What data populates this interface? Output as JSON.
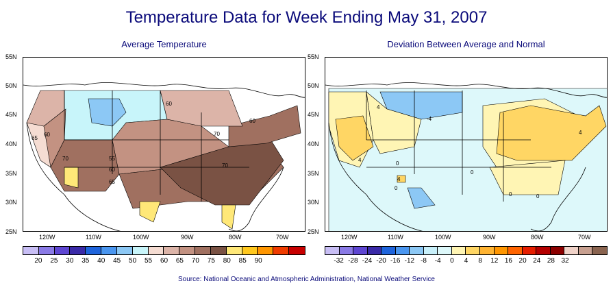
{
  "title": "Temperature Data for Week Ending May 31, 2007",
  "left_map": {
    "subtitle": "Average Temperature",
    "lat_labels": [
      "55N",
      "50N",
      "45N",
      "40N",
      "35N",
      "30N",
      "25N"
    ],
    "lon_labels": [
      "120W",
      "110W",
      "100W",
      "90W",
      "80W",
      "70W"
    ],
    "contour_labels": [
      "60",
      "65",
      "60",
      "70",
      "70",
      "55",
      "60",
      "65",
      "60",
      "70"
    ],
    "legend_colors": [
      "#c8bef5",
      "#8a7ae6",
      "#5e46d2",
      "#3a2aa8",
      "#1e64dc",
      "#4a96f0",
      "#8cc8f5",
      "#c8f5fa",
      "#f5dcd2",
      "#dcb4a8",
      "#c39282",
      "#a07060",
      "#7a5244",
      "#ffe878",
      "#ffc81e",
      "#ff9600",
      "#f03c00",
      "#c80000"
    ],
    "legend_ticks": [
      "20",
      "25",
      "30",
      "35",
      "40",
      "45",
      "50",
      "55",
      "60",
      "65",
      "70",
      "75",
      "80",
      "85",
      "90"
    ]
  },
  "right_map": {
    "subtitle": "Deviation Between Average and Normal",
    "lat_labels": [
      "55N",
      "50N",
      "45N",
      "40N",
      "35N",
      "30N",
      "25N"
    ],
    "lon_labels": [
      "120W",
      "110W",
      "100W",
      "90W",
      "80W",
      "70W"
    ],
    "contour_labels": [
      "4",
      "-4",
      "0",
      "4",
      "0",
      "4",
      "0",
      "0",
      "0",
      "4"
    ],
    "legend_colors": [
      "#c8bef5",
      "#8a7ae6",
      "#5e46d2",
      "#3a2aa8",
      "#1e64dc",
      "#4a96f0",
      "#8cc8f5",
      "#c8f0fa",
      "#ddf8fa",
      "#fff5b4",
      "#ffd664",
      "#ffb432",
      "#ff9600",
      "#ff6400",
      "#e61e00",
      "#b40000",
      "#8c0000",
      "#f0d2c8",
      "#c8a090",
      "#8a6450"
    ],
    "legend_ticks": [
      "-32",
      "-28",
      "-24",
      "-20",
      "-16",
      "-12",
      "-8",
      "-4",
      "0",
      "4",
      "8",
      "12",
      "16",
      "20",
      "24",
      "28",
      "32"
    ]
  },
  "source": "Source:  National Oceanic and Atmospheric Administration, National Weather Service"
}
